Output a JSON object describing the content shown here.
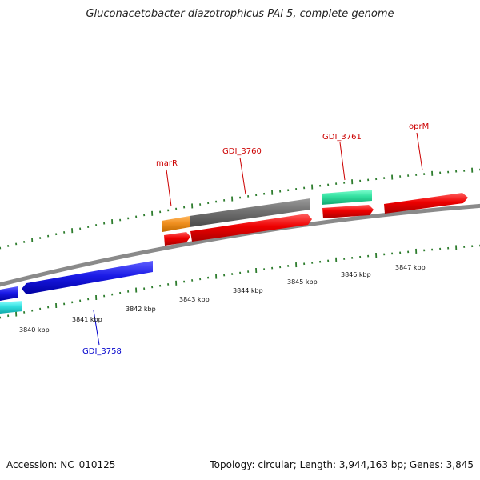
{
  "header": {
    "title": "Gluconacetobacter diazotrophicus PAl 5, complete genome"
  },
  "footer": {
    "accession": "Accession: NC_010125",
    "topology": "Topology: circular; Length: 3,944,163 bp; Genes: 3,845"
  },
  "colors": {
    "backbone": "#8a8a8a",
    "tick": "#2e7d2e",
    "red_gene": "#ee0000",
    "gray_gene": "#707070",
    "orange_gene": "#f09020",
    "teal_gene": "#33e0a0",
    "blue_gene": "#1a1ae6",
    "cyan_gene": "#33e0e0",
    "red_label": "#cc0000",
    "blue_label": "#0000cc"
  },
  "kbp_labels": [
    "3840 kbp",
    "3841 kbp",
    "3842 kbp",
    "3843 kbp",
    "3844 kbp",
    "3845 kbp",
    "3846 kbp",
    "3847 kbp"
  ],
  "gene_labels": {
    "marR": "marR",
    "gdi3760": "GDI_3760",
    "gdi3761": "GDI_3761",
    "oprM": "oprM",
    "gdi3758": "GDI_3758"
  }
}
